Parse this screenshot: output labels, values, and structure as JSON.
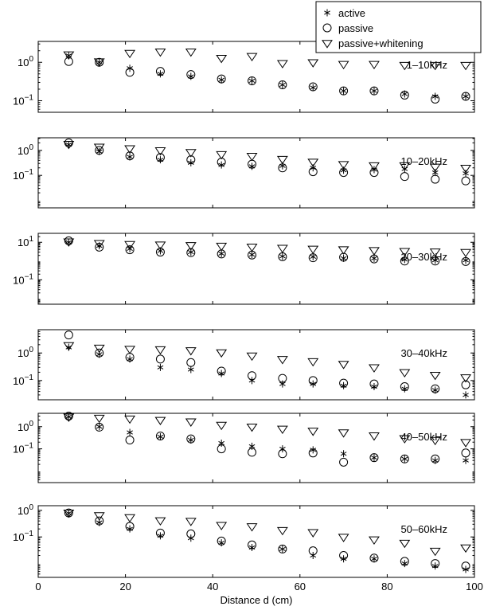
{
  "chart_data": {
    "type": "scatter",
    "x_axis": {
      "label": "Distance d (cm)",
      "range": [
        0,
        100
      ],
      "ticks": [
        "0",
        "20",
        "40",
        "60",
        "80",
        "100"
      ]
    },
    "y_scale": "log",
    "x": [
      7,
      14,
      21,
      28,
      35,
      42,
      49,
      56,
      63,
      70,
      77,
      84,
      91,
      98
    ],
    "legend": {
      "placement": "top-right",
      "entries": [
        {
          "label": "active",
          "marker": "asterisk"
        },
        {
          "label": "passive",
          "marker": "circle"
        },
        {
          "label": "passive+whitening",
          "marker": "triangle-down"
        }
      ]
    },
    "panels": [
      {
        "label": "1–10kHz",
        "ylim": [
          0.05,
          3.5
        ],
        "yticks": [
          {
            "value": 1,
            "base": "10",
            "exp": "0"
          },
          {
            "value": 0.1,
            "base": "10",
            "exp": "−1"
          }
        ],
        "series": [
          {
            "name": "active",
            "values": [
              1.5,
              1.0,
              0.7,
              0.5,
              0.43,
              0.35,
              0.33,
              0.26,
              0.22,
              0.18,
              0.18,
              0.15,
              0.13,
              0.13
            ]
          },
          {
            "name": "passive",
            "values": [
              1.05,
              1.0,
              0.55,
              0.58,
              0.48,
              0.37,
              0.33,
              0.26,
              0.23,
              0.18,
              0.18,
              0.14,
              0.11,
              0.13
            ]
          },
          {
            "name": "passive+whitening",
            "values": [
              1.6,
              1.05,
              1.75,
              1.9,
              1.9,
              1.3,
              1.45,
              0.95,
              1.0,
              0.9,
              0.9,
              0.85,
              0.85,
              0.85
            ]
          }
        ]
      },
      {
        "label": "10–20kHz",
        "ylim": [
          0.005,
          3.2
        ],
        "yticks": [
          {
            "value": 1,
            "base": "10",
            "exp": "0"
          },
          {
            "value": 0.1,
            "base": "10",
            "exp": "−1"
          }
        ],
        "series": [
          {
            "name": "active",
            "values": [
              1.7,
              0.9,
              0.55,
              0.42,
              0.32,
              0.26,
              0.23,
              0.24,
              0.2,
              0.16,
              0.17,
              0.18,
              0.13,
              0.12
            ]
          },
          {
            "name": "passive",
            "values": [
              2.0,
              1.0,
              0.6,
              0.52,
              0.42,
              0.34,
              0.28,
              0.2,
              0.14,
              0.13,
              0.13,
              0.09,
              0.07,
              0.06
            ]
          },
          {
            "name": "passive+whitening",
            "values": [
              1.8,
              1.4,
              1.2,
              1.0,
              0.85,
              0.7,
              0.6,
              0.45,
              0.35,
              0.28,
              0.25,
              0.25,
              0.22,
              0.2
            ]
          }
        ]
      },
      {
        "label": "20–30kHz",
        "ylim": [
          0.005,
          30
        ],
        "yticks": [
          {
            "value": 10,
            "base": "10",
            "exp": "1"
          },
          {
            "value": 0.1,
            "base": "10",
            "exp": "−1"
          }
        ],
        "series": [
          {
            "name": "active",
            "values": [
              10,
              6.5,
              4.5,
              3.5,
              3.0,
              2.5,
              2.2,
              1.8,
              1.7,
              1.4,
              1.4,
              1.2,
              1.1,
              1.1
            ]
          },
          {
            "name": "passive",
            "values": [
              12,
              5.5,
              4.0,
              3.0,
              2.8,
              2.4,
              2.1,
              1.7,
              1.5,
              1.6,
              1.3,
              1.0,
              1.0,
              0.95
            ]
          },
          {
            "name": "passive+whitening",
            "values": [
              11,
              9,
              8,
              7.5,
              7,
              6.5,
              5.8,
              5,
              4.5,
              4.2,
              3.8,
              3.4,
              3.2,
              3.0
            ]
          }
        ]
      },
      {
        "label": "30–40kHz",
        "ylim": [
          0.02,
          7
        ],
        "yticks": [
          {
            "value": 1,
            "base": "10",
            "exp": "0"
          },
          {
            "value": 0.1,
            "base": "10",
            "exp": "−1"
          }
        ],
        "series": [
          {
            "name": "active",
            "values": [
              1.6,
              0.9,
              0.6,
              0.3,
              0.25,
              0.18,
              0.1,
              0.075,
              0.075,
              0.065,
              0.06,
              0.05,
              0.045,
              0.03
            ]
          },
          {
            "name": "passive",
            "values": [
              4.5,
              1.0,
              0.7,
              0.6,
              0.45,
              0.22,
              0.15,
              0.12,
              0.1,
              0.08,
              0.075,
              0.06,
              0.05,
              0.07
            ]
          },
          {
            "name": "passive+whitening",
            "values": [
              1.9,
              1.55,
              1.4,
              1.35,
              1.25,
              1.05,
              0.8,
              0.6,
              0.5,
              0.4,
              0.3,
              0.2,
              0.16,
              0.13
            ]
          }
        ]
      },
      {
        "label": "40–50kHz",
        "ylim": [
          0.003,
          4
        ],
        "yticks": [
          {
            "value": 1,
            "base": "10",
            "exp": "0"
          },
          {
            "value": 0.1,
            "base": "10",
            "exp": "−1"
          }
        ],
        "series": [
          {
            "name": "active",
            "values": [
              2.8,
              1.0,
              0.55,
              0.35,
              0.25,
              0.18,
              0.13,
              0.1,
              0.09,
              0.06,
              0.04,
              0.035,
              0.03,
              0.03
            ]
          },
          {
            "name": "passive",
            "values": [
              3.0,
              0.95,
              0.25,
              0.38,
              0.28,
              0.1,
              0.07,
              0.06,
              0.065,
              0.025,
              0.04,
              0.035,
              0.035,
              0.065
            ]
          },
          {
            "name": "passive+whitening",
            "values": [
              2.8,
              2.5,
              2.3,
              2.0,
              1.7,
              1.2,
              1.0,
              0.8,
              0.65,
              0.55,
              0.4,
              0.3,
              0.25,
              0.2
            ]
          }
        ]
      },
      {
        "label": "50–60kHz",
        "ylim": [
          0.003,
          1.5
        ],
        "yticks": [
          {
            "value": 1,
            "base": "10",
            "exp": "0"
          },
          {
            "value": 0.1,
            "base": "10",
            "exp": "−1"
          }
        ],
        "series": [
          {
            "name": "active",
            "values": [
              0.78,
              0.35,
              0.2,
              0.11,
              0.09,
              0.06,
              0.04,
              0.035,
              0.02,
              0.015,
              0.015,
              0.01,
              0.008,
              0.006
            ]
          },
          {
            "name": "passive",
            "values": [
              0.8,
              0.4,
              0.25,
              0.14,
              0.13,
              0.07,
              0.05,
              0.035,
              0.03,
              0.02,
              0.016,
              0.012,
              0.01,
              0.008
            ]
          },
          {
            "name": "passive+whitening",
            "values": [
              0.82,
              0.65,
              0.55,
              0.42,
              0.4,
              0.28,
              0.25,
              0.18,
              0.15,
              0.1,
              0.08,
              0.06,
              0.03,
              0.04
            ]
          }
        ]
      }
    ]
  }
}
